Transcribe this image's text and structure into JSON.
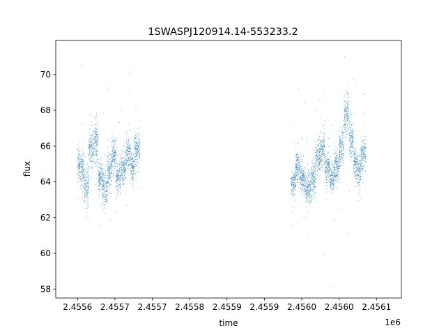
{
  "chart_data": {
    "type": "scatter",
    "title": "1SWASPJ120914.14-553233.2",
    "xlabel": "time",
    "ylabel": "flux",
    "x_offset_label": "1e6",
    "xlim": [
      2455575,
      2456130
    ],
    "ylim": [
      57.5,
      71.9
    ],
    "xticks": [
      2455610,
      2455670,
      2455730,
      2455790,
      2455850,
      2455910,
      2455970,
      2456030,
      2456090
    ],
    "xtick_labels": [
      "2.4556",
      "2.4557",
      "2.4557",
      "2.4558",
      "2.4559",
      "2.4559",
      "2.4560",
      "2.4560",
      "2.4561"
    ],
    "yticks": [
      58,
      60,
      62,
      64,
      66,
      68,
      70
    ],
    "ytick_labels": [
      "58",
      "60",
      "62",
      "64",
      "66",
      "68",
      "70"
    ],
    "grid": false,
    "marker_color": "#1f77b4",
    "series": [
      {
        "segments": [
          {
            "x": [
              2455610,
              2455615
            ],
            "y_center": 65.0,
            "y_spread": 0.9
          },
          {
            "x": [
              2455615,
              2455620
            ],
            "y_center": 64.6,
            "y_spread": 0.8
          },
          {
            "x": [
              2455620,
              2455628
            ],
            "y_center": 63.8,
            "y_spread": 0.9
          },
          {
            "x": [
              2455628,
              2455636
            ],
            "y_center": 65.8,
            "y_spread": 0.9
          },
          {
            "x": [
              2455636,
              2455643
            ],
            "y_center": 66.2,
            "y_spread": 1.0
          },
          {
            "x": [
              2455643,
              2455650
            ],
            "y_center": 64.2,
            "y_spread": 0.8
          },
          {
            "x": [
              2455650,
              2455658
            ],
            "y_center": 63.6,
            "y_spread": 0.9
          },
          {
            "x": [
              2455658,
              2455665
            ],
            "y_center": 64.6,
            "y_spread": 0.9
          },
          {
            "x": [
              2455665,
              2455672
            ],
            "y_center": 65.5,
            "y_spread": 0.8
          },
          {
            "x": [
              2455672,
              2455680
            ],
            "y_center": 64.2,
            "y_spread": 0.8
          },
          {
            "x": [
              2455680,
              2455688
            ],
            "y_center": 64.8,
            "y_spread": 0.8
          },
          {
            "x": [
              2455688,
              2455695
            ],
            "y_center": 65.6,
            "y_spread": 0.8
          },
          {
            "x": [
              2455695,
              2455701
            ],
            "y_center": 64.8,
            "y_spread": 0.7
          },
          {
            "x": [
              2455701,
              2455710
            ],
            "y_center": 65.8,
            "y_spread": 0.8
          },
          {
            "x": [
              2455953,
              2455960
            ],
            "y_center": 64.0,
            "y_spread": 0.6
          },
          {
            "x": [
              2455960,
              2455968
            ],
            "y_center": 64.8,
            "y_spread": 0.7
          },
          {
            "x": [
              2455968,
              2455976
            ],
            "y_center": 64.2,
            "y_spread": 0.7
          },
          {
            "x": [
              2455976,
              2455985
            ],
            "y_center": 63.6,
            "y_spread": 0.8
          },
          {
            "x": [
              2455985,
              2455992
            ],
            "y_center": 64.2,
            "y_spread": 0.8
          },
          {
            "x": [
              2455992,
              2456000
            ],
            "y_center": 65.3,
            "y_spread": 0.8
          },
          {
            "x": [
              2456000,
              2456007
            ],
            "y_center": 65.8,
            "y_spread": 0.8
          },
          {
            "x": [
              2456007,
              2456015
            ],
            "y_center": 64.8,
            "y_spread": 0.8
          },
          {
            "x": [
              2456015,
              2456022
            ],
            "y_center": 64.2,
            "y_spread": 0.7
          },
          {
            "x": [
              2456022,
              2456030
            ],
            "y_center": 64.8,
            "y_spread": 0.7
          },
          {
            "x": [
              2456030,
              2456038
            ],
            "y_center": 66.0,
            "y_spread": 0.9
          },
          {
            "x": [
              2456038,
              2456046
            ],
            "y_center": 67.8,
            "y_spread": 1.1
          },
          {
            "x": [
              2456046,
              2456053
            ],
            "y_center": 66.4,
            "y_spread": 0.9
          },
          {
            "x": [
              2456053,
              2456058
            ],
            "y_center": 65.0,
            "y_spread": 0.8
          },
          {
            "x": [
              2456058,
              2456065
            ],
            "y_center": 64.6,
            "y_spread": 0.8
          },
          {
            "x": [
              2456065,
              2456073
            ],
            "y_center": 65.6,
            "y_spread": 0.8
          }
        ]
      }
    ]
  }
}
